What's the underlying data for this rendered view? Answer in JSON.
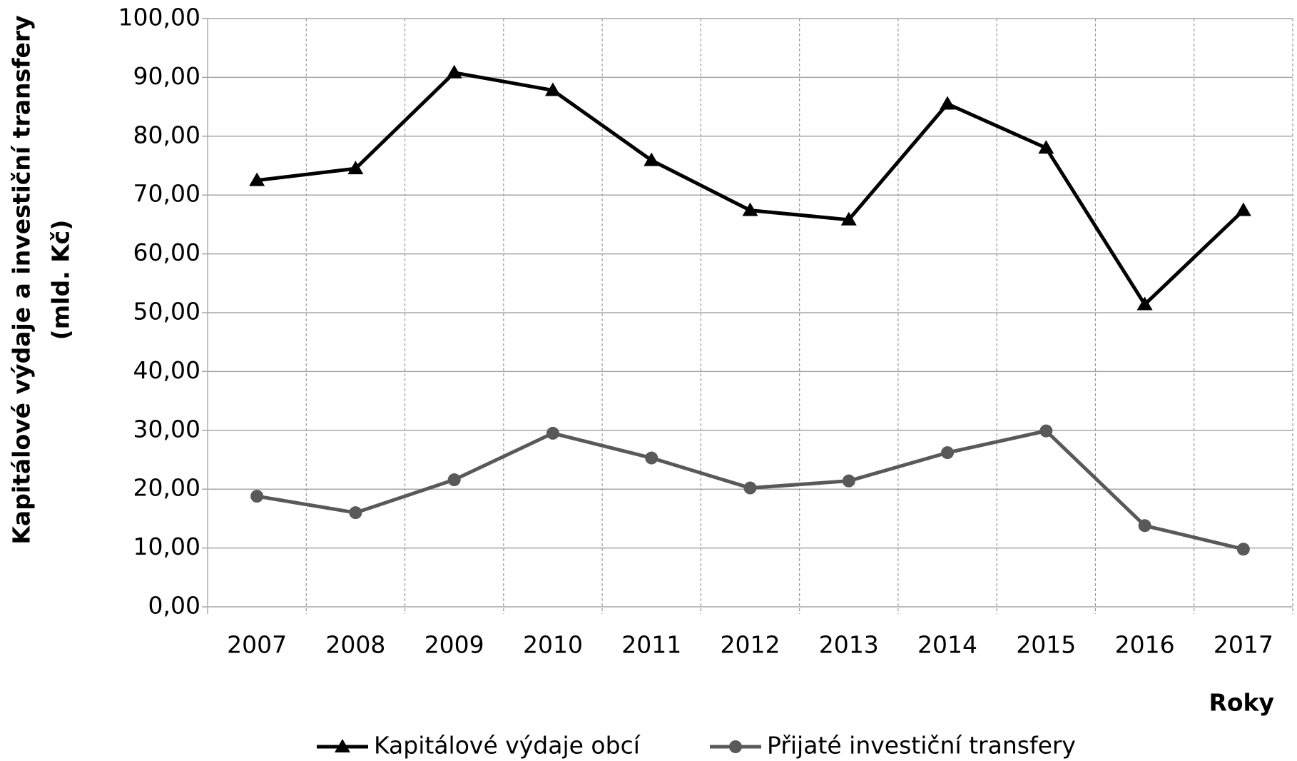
{
  "chart_data": {
    "type": "line",
    "ylabel": [
      "Kapitálové výdaje a investiční transfery",
      "(mld. Kč)"
    ],
    "xlabel": "Roky",
    "categories": [
      "2007",
      "2008",
      "2009",
      "2010",
      "2011",
      "2012",
      "2013",
      "2014",
      "2015",
      "2016",
      "2017"
    ],
    "series": [
      {
        "name": "Kapitálové výdaje obcí",
        "color": "#000000",
        "marker": "triangle",
        "values": [
          72.5,
          74.5,
          90.8,
          87.8,
          75.9,
          67.4,
          65.8,
          85.5,
          78.0,
          51.4,
          67.4
        ]
      },
      {
        "name": "Přijaté investiční transfery",
        "color": "#595959",
        "marker": "circle",
        "values": [
          18.8,
          16.0,
          21.6,
          29.5,
          25.3,
          20.2,
          21.4,
          26.2,
          29.9,
          13.8,
          9.8
        ]
      }
    ],
    "ylim": [
      0,
      100
    ],
    "yticks": [
      {
        "value": 0,
        "label": "0,00"
      },
      {
        "value": 10,
        "label": "10,00"
      },
      {
        "value": 20,
        "label": "20,00"
      },
      {
        "value": 30,
        "label": "30,00"
      },
      {
        "value": 40,
        "label": "40,00"
      },
      {
        "value": 50,
        "label": "50,00"
      },
      {
        "value": 60,
        "label": "60,00"
      },
      {
        "value": 70,
        "label": "70,00"
      },
      {
        "value": 80,
        "label": "80,00"
      },
      {
        "value": 90,
        "label": "90,00"
      },
      {
        "value": 100,
        "label": "100,00"
      }
    ],
    "grid": true
  }
}
